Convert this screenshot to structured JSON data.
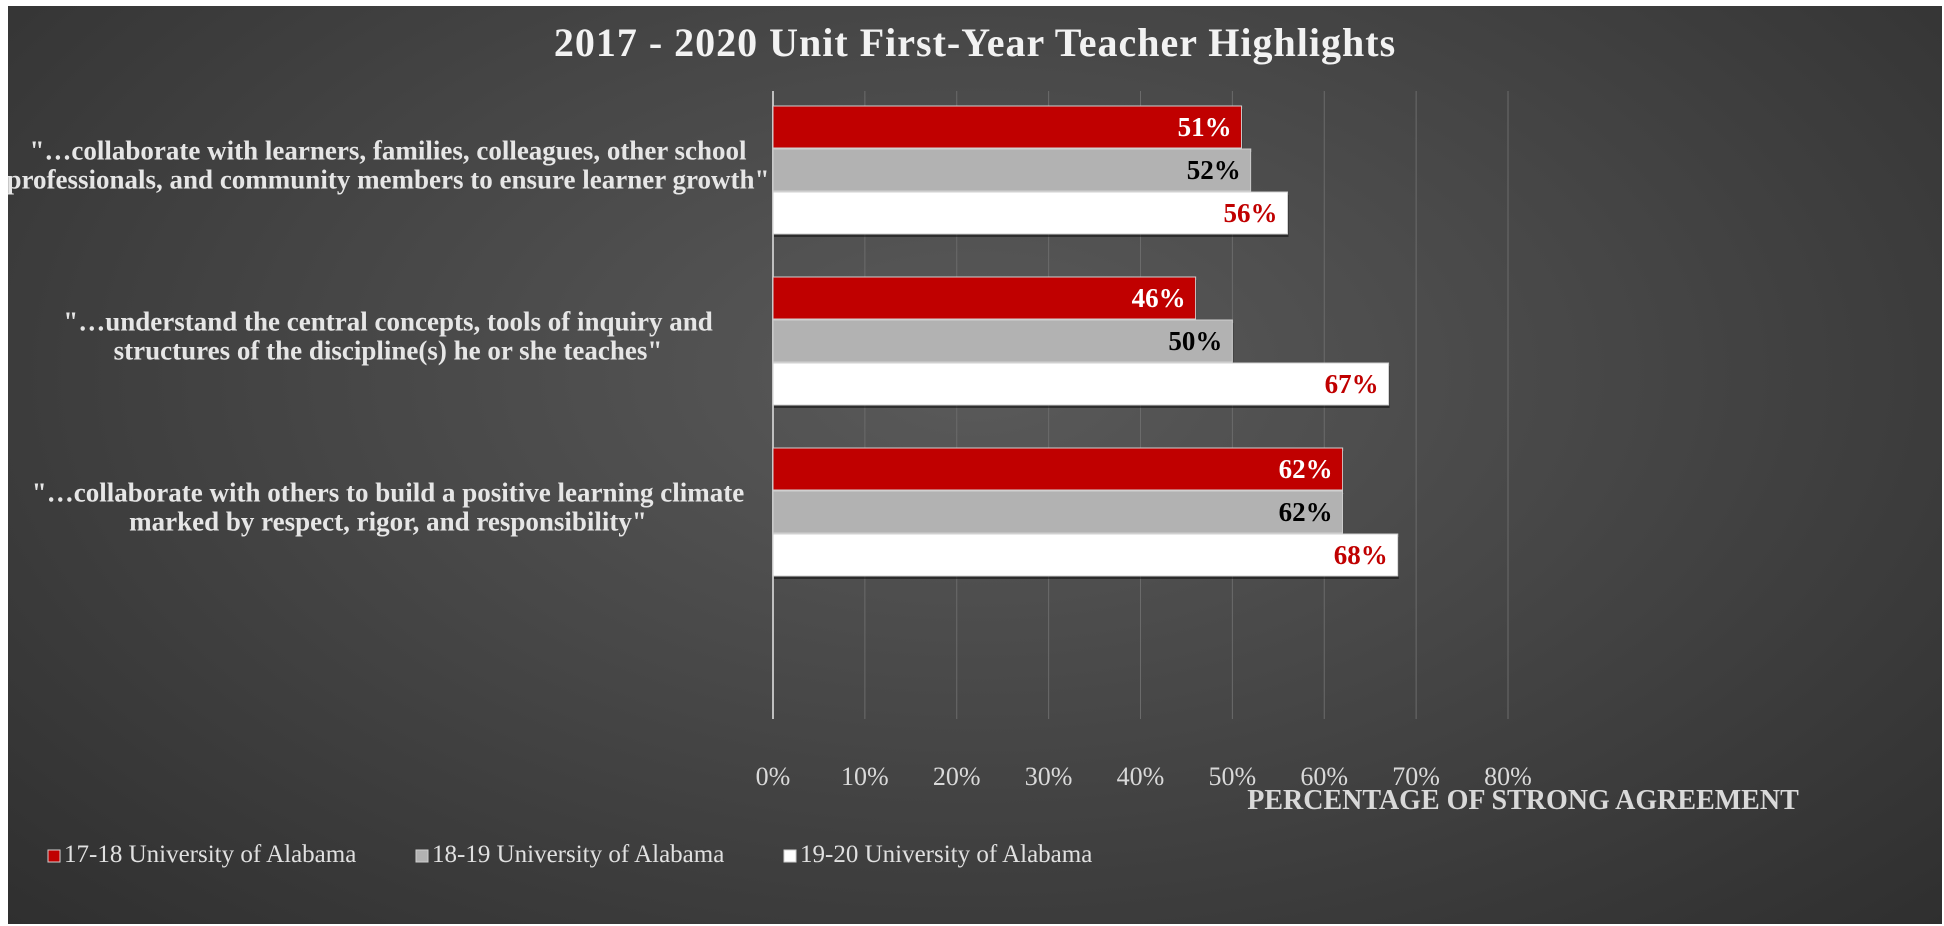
{
  "chart_data": {
    "type": "bar",
    "orientation": "horizontal",
    "title": "2017 - 2020 Unit First-Year Teacher Highlights",
    "xlabel": "PERCENTAGE OF STRONG AGREEMENT",
    "xlim": [
      0,
      80
    ],
    "ticks": [
      "0%",
      "10%",
      "20%",
      "30%",
      "40%",
      "50%",
      "60%",
      "70%",
      "80%"
    ],
    "tick_values": [
      0,
      10,
      20,
      30,
      40,
      50,
      60,
      70,
      80
    ],
    "grid": true,
    "legend_position": "bottom-left",
    "categories": [
      {
        "label_lines": [
          "\"…collaborate with learners, families, colleagues, other school",
          "professionals, and community members to ensure learner growth\""
        ]
      },
      {
        "label_lines": [
          "\"…understand the central concepts, tools of inquiry and",
          "structures of the discipline(s) he or she teaches\""
        ]
      },
      {
        "label_lines": [
          "\"…collaborate with others to build a positive learning climate",
          "marked by respect, rigor, and responsibility\""
        ]
      }
    ],
    "series": [
      {
        "name": "17-18 University of Alabama",
        "color": "#c00000",
        "label_color": "#ffffff",
        "values": [
          51,
          46,
          62
        ],
        "labels": [
          "51%",
          "46%",
          "62%"
        ]
      },
      {
        "name": "18-19 University of Alabama",
        "color": "#b2b2b2",
        "label_color": "#000000",
        "values": [
          52,
          50,
          62
        ],
        "labels": [
          "52%",
          "50%",
          "62%"
        ]
      },
      {
        "name": "19-20 University of Alabama",
        "color": "#ffffff",
        "label_color": "#c00000",
        "values": [
          56,
          67,
          68
        ],
        "labels": [
          "56%",
          "67%",
          "68%"
        ]
      }
    ]
  }
}
